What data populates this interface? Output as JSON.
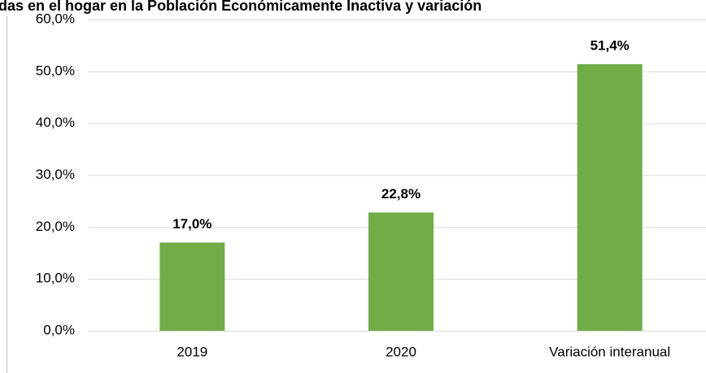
{
  "chart_data": {
    "type": "bar",
    "title": "das en el hogar en la Población Económicamente Inactiva y variación",
    "categories": [
      "2019",
      "2020",
      "Variación interanual"
    ],
    "values": [
      17.0,
      22.8,
      51.4
    ],
    "value_labels": [
      "17,0%",
      "22,8%",
      "51,4%"
    ],
    "color": "#70ad47",
    "ylim": [
      0,
      60
    ],
    "yticks": [
      {
        "value": 0,
        "label": "0,0%"
      },
      {
        "value": 10,
        "label": "10,0%"
      },
      {
        "value": 20,
        "label": "20,0%"
      },
      {
        "value": 30,
        "label": "30,0%"
      },
      {
        "value": 40,
        "label": "40,0%"
      },
      {
        "value": 50,
        "label": "50,0%"
      },
      {
        "value": 60,
        "label": "60,0%"
      }
    ],
    "grid": true
  }
}
